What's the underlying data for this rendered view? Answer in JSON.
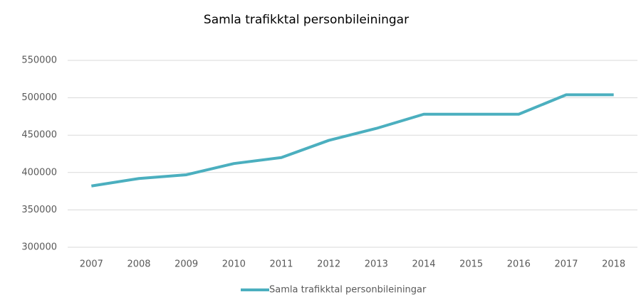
{
  "chart_data": {
    "type": "line",
    "title": "Samla trafikktal personbileiningar",
    "categories": [
      "2007",
      "2008",
      "2009",
      "2010",
      "2011",
      "2012",
      "2013",
      "2014",
      "2015",
      "2016",
      "2017",
      "2018"
    ],
    "series": [
      {
        "name": "Samla trafikktal personbileiningar",
        "color": "#4bafbf",
        "values": [
          382000,
          392000,
          397000,
          412000,
          420000,
          443000,
          459000,
          478000,
          478000,
          478000,
          504000,
          504000
        ]
      }
    ],
    "ylim": [
      300000,
      550000
    ],
    "yticks": [
      300000,
      350000,
      400000,
      450000,
      500000,
      550000
    ],
    "grid": true,
    "legend": "bottom"
  }
}
